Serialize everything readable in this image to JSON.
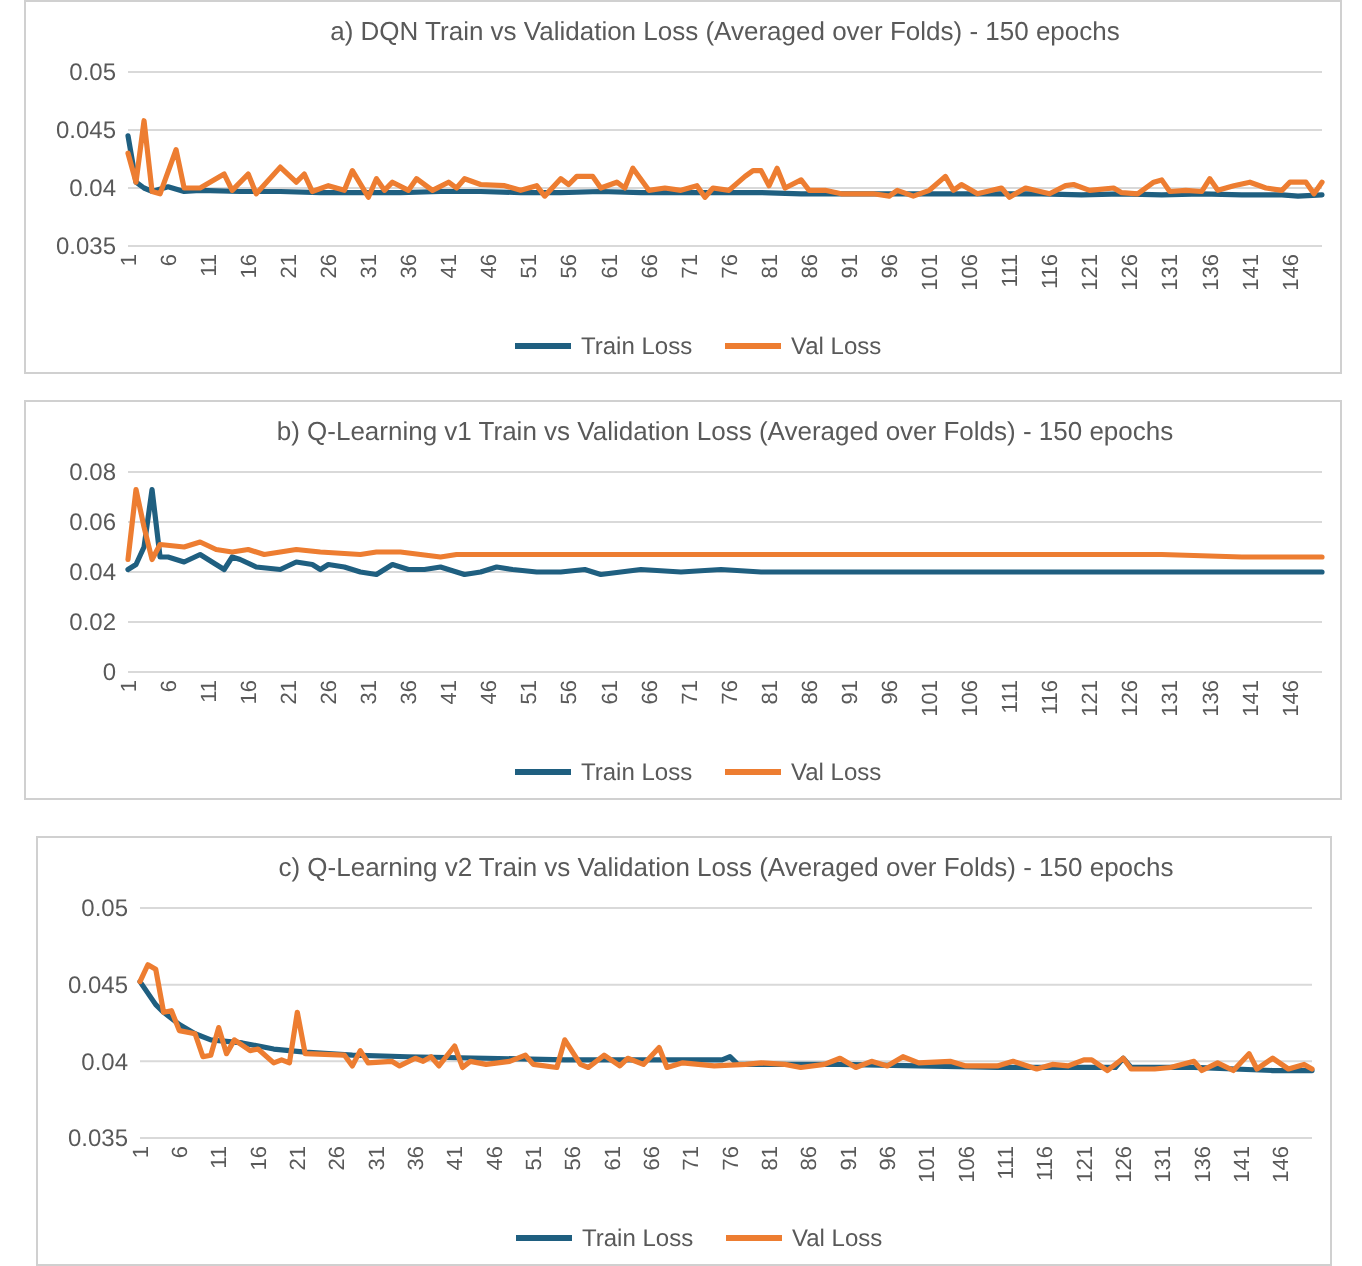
{
  "chart_data": [
    {
      "type": "line",
      "title": "a) DQN Train vs Validation Loss (Averaged over Folds) - 150 epochs",
      "xlim": [
        1,
        150
      ],
      "xticks": [
        1,
        6,
        11,
        16,
        21,
        26,
        31,
        36,
        41,
        46,
        51,
        56,
        61,
        66,
        71,
        76,
        81,
        86,
        91,
        96,
        101,
        106,
        111,
        116,
        121,
        126,
        131,
        136,
        141,
        146
      ],
      "ylim": [
        0.035,
        0.05
      ],
      "yticks": [
        0.035,
        0.04,
        0.045,
        0.05
      ],
      "grid": "y",
      "legend": "bottom",
      "marker": "none",
      "line_style": "solid",
      "series": [
        {
          "name": "Train Loss",
          "color": "#1f5f80",
          "x": [
            1,
            2,
            3,
            4,
            6,
            8,
            10,
            15,
            20,
            25,
            30,
            35,
            40,
            45,
            50,
            55,
            60,
            65,
            70,
            75,
            80,
            85,
            90,
            95,
            100,
            105,
            110,
            115,
            120,
            125,
            130,
            135,
            140,
            145,
            147,
            150
          ],
          "values": [
            0.0445,
            0.0405,
            0.04,
            0.0397,
            0.0401,
            0.0397,
            0.0398,
            0.0397,
            0.0397,
            0.0396,
            0.0396,
            0.0396,
            0.0397,
            0.0397,
            0.0396,
            0.0396,
            0.0397,
            0.0396,
            0.0396,
            0.0396,
            0.0396,
            0.0395,
            0.0395,
            0.0395,
            0.0395,
            0.0395,
            0.0395,
            0.0395,
            0.0394,
            0.0395,
            0.0394,
            0.0395,
            0.0394,
            0.0394,
            0.0393,
            0.0394
          ]
        },
        {
          "name": "Val Loss",
          "color": "#ed7d31",
          "x": [
            1,
            2,
            3,
            4,
            5,
            7,
            8,
            10,
            13,
            14,
            16,
            17,
            20,
            22,
            23,
            24,
            26,
            28,
            29,
            31,
            32,
            33,
            34,
            36,
            37,
            39,
            41,
            42,
            43,
            45,
            48,
            50,
            52,
            53,
            55,
            56,
            57,
            59,
            60,
            62,
            63,
            64,
            66,
            68,
            70,
            72,
            73,
            74,
            76,
            78,
            79,
            80,
            81,
            82,
            83,
            85,
            86,
            88,
            90,
            91,
            94,
            96,
            97,
            99,
            101,
            103,
            104,
            105,
            107,
            110,
            111,
            113,
            116,
            118,
            119,
            121,
            124,
            125,
            127,
            129,
            130,
            131,
            133,
            135,
            136,
            137,
            139,
            141,
            143,
            145,
            146,
            148,
            149,
            150
          ],
          "values": [
            0.043,
            0.0405,
            0.0458,
            0.0397,
            0.0395,
            0.0433,
            0.04,
            0.04,
            0.0412,
            0.0398,
            0.0412,
            0.0395,
            0.0418,
            0.0405,
            0.0412,
            0.0397,
            0.0402,
            0.0398,
            0.0415,
            0.0392,
            0.0408,
            0.0398,
            0.0405,
            0.0398,
            0.0408,
            0.0398,
            0.0405,
            0.04,
            0.0408,
            0.0403,
            0.0402,
            0.0398,
            0.0402,
            0.0393,
            0.0408,
            0.0403,
            0.041,
            0.041,
            0.04,
            0.0405,
            0.04,
            0.0417,
            0.0398,
            0.04,
            0.0398,
            0.0402,
            0.0392,
            0.04,
            0.0398,
            0.041,
            0.0415,
            0.0415,
            0.0402,
            0.0417,
            0.04,
            0.0407,
            0.0398,
            0.0398,
            0.0395,
            0.0395,
            0.0395,
            0.0393,
            0.0398,
            0.0393,
            0.0398,
            0.041,
            0.0398,
            0.0403,
            0.0395,
            0.04,
            0.0392,
            0.04,
            0.0395,
            0.0402,
            0.0403,
            0.0398,
            0.04,
            0.0396,
            0.0395,
            0.0405,
            0.0407,
            0.0397,
            0.0398,
            0.0397,
            0.0408,
            0.0398,
            0.0402,
            0.0405,
            0.04,
            0.0398,
            0.0405,
            0.0405,
            0.0395,
            0.0405
          ]
        }
      ]
    },
    {
      "type": "line",
      "title": "b) Q-Learning v1 Train vs Validation Loss (Averaged over Folds) - 150 epochs",
      "xlim": [
        1,
        150
      ],
      "xticks": [
        1,
        6,
        11,
        16,
        21,
        26,
        31,
        36,
        41,
        46,
        51,
        56,
        61,
        66,
        71,
        76,
        81,
        86,
        91,
        96,
        101,
        106,
        111,
        116,
        121,
        126,
        131,
        136,
        141,
        146
      ],
      "ylim": [
        0,
        0.08
      ],
      "yticks": [
        0,
        0.02,
        0.04,
        0.06,
        0.08
      ],
      "grid": "y",
      "legend": "bottom",
      "marker": "none",
      "line_style": "solid",
      "series": [
        {
          "name": "Train Loss",
          "color": "#1f5f80",
          "x": [
            1,
            2,
            3,
            4,
            5,
            6,
            7,
            8,
            10,
            12,
            13,
            14,
            15,
            17,
            20,
            22,
            24,
            25,
            26,
            28,
            30,
            32,
            34,
            36,
            38,
            40,
            43,
            45,
            47,
            49,
            52,
            55,
            58,
            60,
            65,
            70,
            75,
            80,
            90,
            100,
            110,
            120,
            130,
            140,
            150
          ],
          "values": [
            0.041,
            0.043,
            0.05,
            0.073,
            0.046,
            0.046,
            0.045,
            0.044,
            0.047,
            0.043,
            0.041,
            0.046,
            0.045,
            0.042,
            0.041,
            0.044,
            0.043,
            0.041,
            0.043,
            0.042,
            0.04,
            0.039,
            0.043,
            0.041,
            0.041,
            0.042,
            0.039,
            0.04,
            0.042,
            0.041,
            0.04,
            0.04,
            0.041,
            0.039,
            0.041,
            0.04,
            0.041,
            0.04,
            0.04,
            0.04,
            0.04,
            0.04,
            0.04,
            0.04,
            0.04
          ]
        },
        {
          "name": "Val Loss",
          "color": "#ed7d31",
          "x": [
            1,
            2,
            3,
            4,
            5,
            8,
            10,
            12,
            14,
            16,
            18,
            20,
            22,
            25,
            30,
            32,
            35,
            40,
            42,
            45,
            50,
            60,
            70,
            80,
            90,
            100,
            110,
            120,
            130,
            140,
            150
          ],
          "values": [
            0.045,
            0.073,
            0.058,
            0.045,
            0.051,
            0.05,
            0.052,
            0.049,
            0.048,
            0.049,
            0.047,
            0.048,
            0.049,
            0.048,
            0.047,
            0.048,
            0.048,
            0.046,
            0.047,
            0.047,
            0.047,
            0.047,
            0.047,
            0.047,
            0.047,
            0.047,
            0.047,
            0.047,
            0.047,
            0.046,
            0.046
          ]
        }
      ]
    },
    {
      "type": "line",
      "title": "c) Q-Learning v2 Train vs Validation Loss (Averaged over Folds) - 150 epochs",
      "xlim": [
        1,
        150
      ],
      "xticks": [
        1,
        6,
        11,
        16,
        21,
        26,
        31,
        36,
        41,
        46,
        51,
        56,
        61,
        66,
        71,
        76,
        81,
        86,
        91,
        96,
        101,
        106,
        111,
        116,
        121,
        126,
        131,
        136,
        141,
        146
      ],
      "ylim": [
        0.035,
        0.05
      ],
      "yticks": [
        0.035,
        0.04,
        0.045,
        0.05
      ],
      "grid": "y",
      "legend": "bottom",
      "marker": "none",
      "line_style": "solid",
      "series": [
        {
          "name": "Train Loss",
          "color": "#1f5f80",
          "x": [
            1,
            3,
            4,
            6,
            8,
            10,
            14,
            18,
            22,
            28,
            35,
            45,
            55,
            65,
            75,
            76,
            77,
            80,
            90,
            100,
            110,
            120,
            125,
            126,
            127,
            135,
            145,
            150
          ],
          "values": [
            0.0452,
            0.0437,
            0.0432,
            0.0424,
            0.0418,
            0.0414,
            0.0412,
            0.0408,
            0.0406,
            0.0404,
            0.0403,
            0.0402,
            0.0401,
            0.0401,
            0.0401,
            0.0403,
            0.0398,
            0.0398,
            0.0398,
            0.0397,
            0.0396,
            0.0396,
            0.0396,
            0.0402,
            0.0396,
            0.0396,
            0.0394,
            0.0394
          ]
        },
        {
          "name": "Val Loss",
          "color": "#ed7d31",
          "x": [
            1,
            2,
            3,
            4,
            5,
            6,
            8,
            9,
            10,
            11,
            12,
            13,
            15,
            16,
            18,
            19,
            20,
            21,
            22,
            27,
            28,
            29,
            30,
            33,
            34,
            36,
            37,
            38,
            39,
            41,
            42,
            43,
            45,
            48,
            50,
            51,
            54,
            55,
            57,
            58,
            60,
            62,
            63,
            65,
            67,
            68,
            70,
            72,
            74,
            78,
            80,
            83,
            85,
            88,
            90,
            92,
            94,
            96,
            98,
            100,
            104,
            106,
            110,
            112,
            115,
            117,
            119,
            121,
            122,
            124,
            126,
            127,
            130,
            132,
            135,
            136,
            138,
            140,
            142,
            143,
            145,
            147,
            149,
            150
          ],
          "values": [
            0.0452,
            0.0463,
            0.046,
            0.0432,
            0.0433,
            0.042,
            0.0418,
            0.0403,
            0.0404,
            0.0422,
            0.0405,
            0.0414,
            0.0407,
            0.0408,
            0.0399,
            0.0401,
            0.0399,
            0.0432,
            0.0405,
            0.0404,
            0.0397,
            0.0407,
            0.0399,
            0.04,
            0.0397,
            0.0402,
            0.04,
            0.0403,
            0.0397,
            0.041,
            0.0396,
            0.04,
            0.0398,
            0.04,
            0.0404,
            0.0398,
            0.0396,
            0.0414,
            0.0398,
            0.0396,
            0.0404,
            0.0397,
            0.0402,
            0.0398,
            0.0409,
            0.0396,
            0.0399,
            0.0398,
            0.0397,
            0.0398,
            0.0399,
            0.0398,
            0.0396,
            0.0398,
            0.0402,
            0.0396,
            0.04,
            0.0397,
            0.0403,
            0.0399,
            0.04,
            0.0397,
            0.0397,
            0.04,
            0.0395,
            0.0398,
            0.0397,
            0.0401,
            0.0401,
            0.0394,
            0.0402,
            0.0395,
            0.0395,
            0.0396,
            0.04,
            0.0394,
            0.0399,
            0.0394,
            0.0405,
            0.0395,
            0.0402,
            0.0395,
            0.0398,
            0.0395
          ]
        }
      ]
    }
  ]
}
